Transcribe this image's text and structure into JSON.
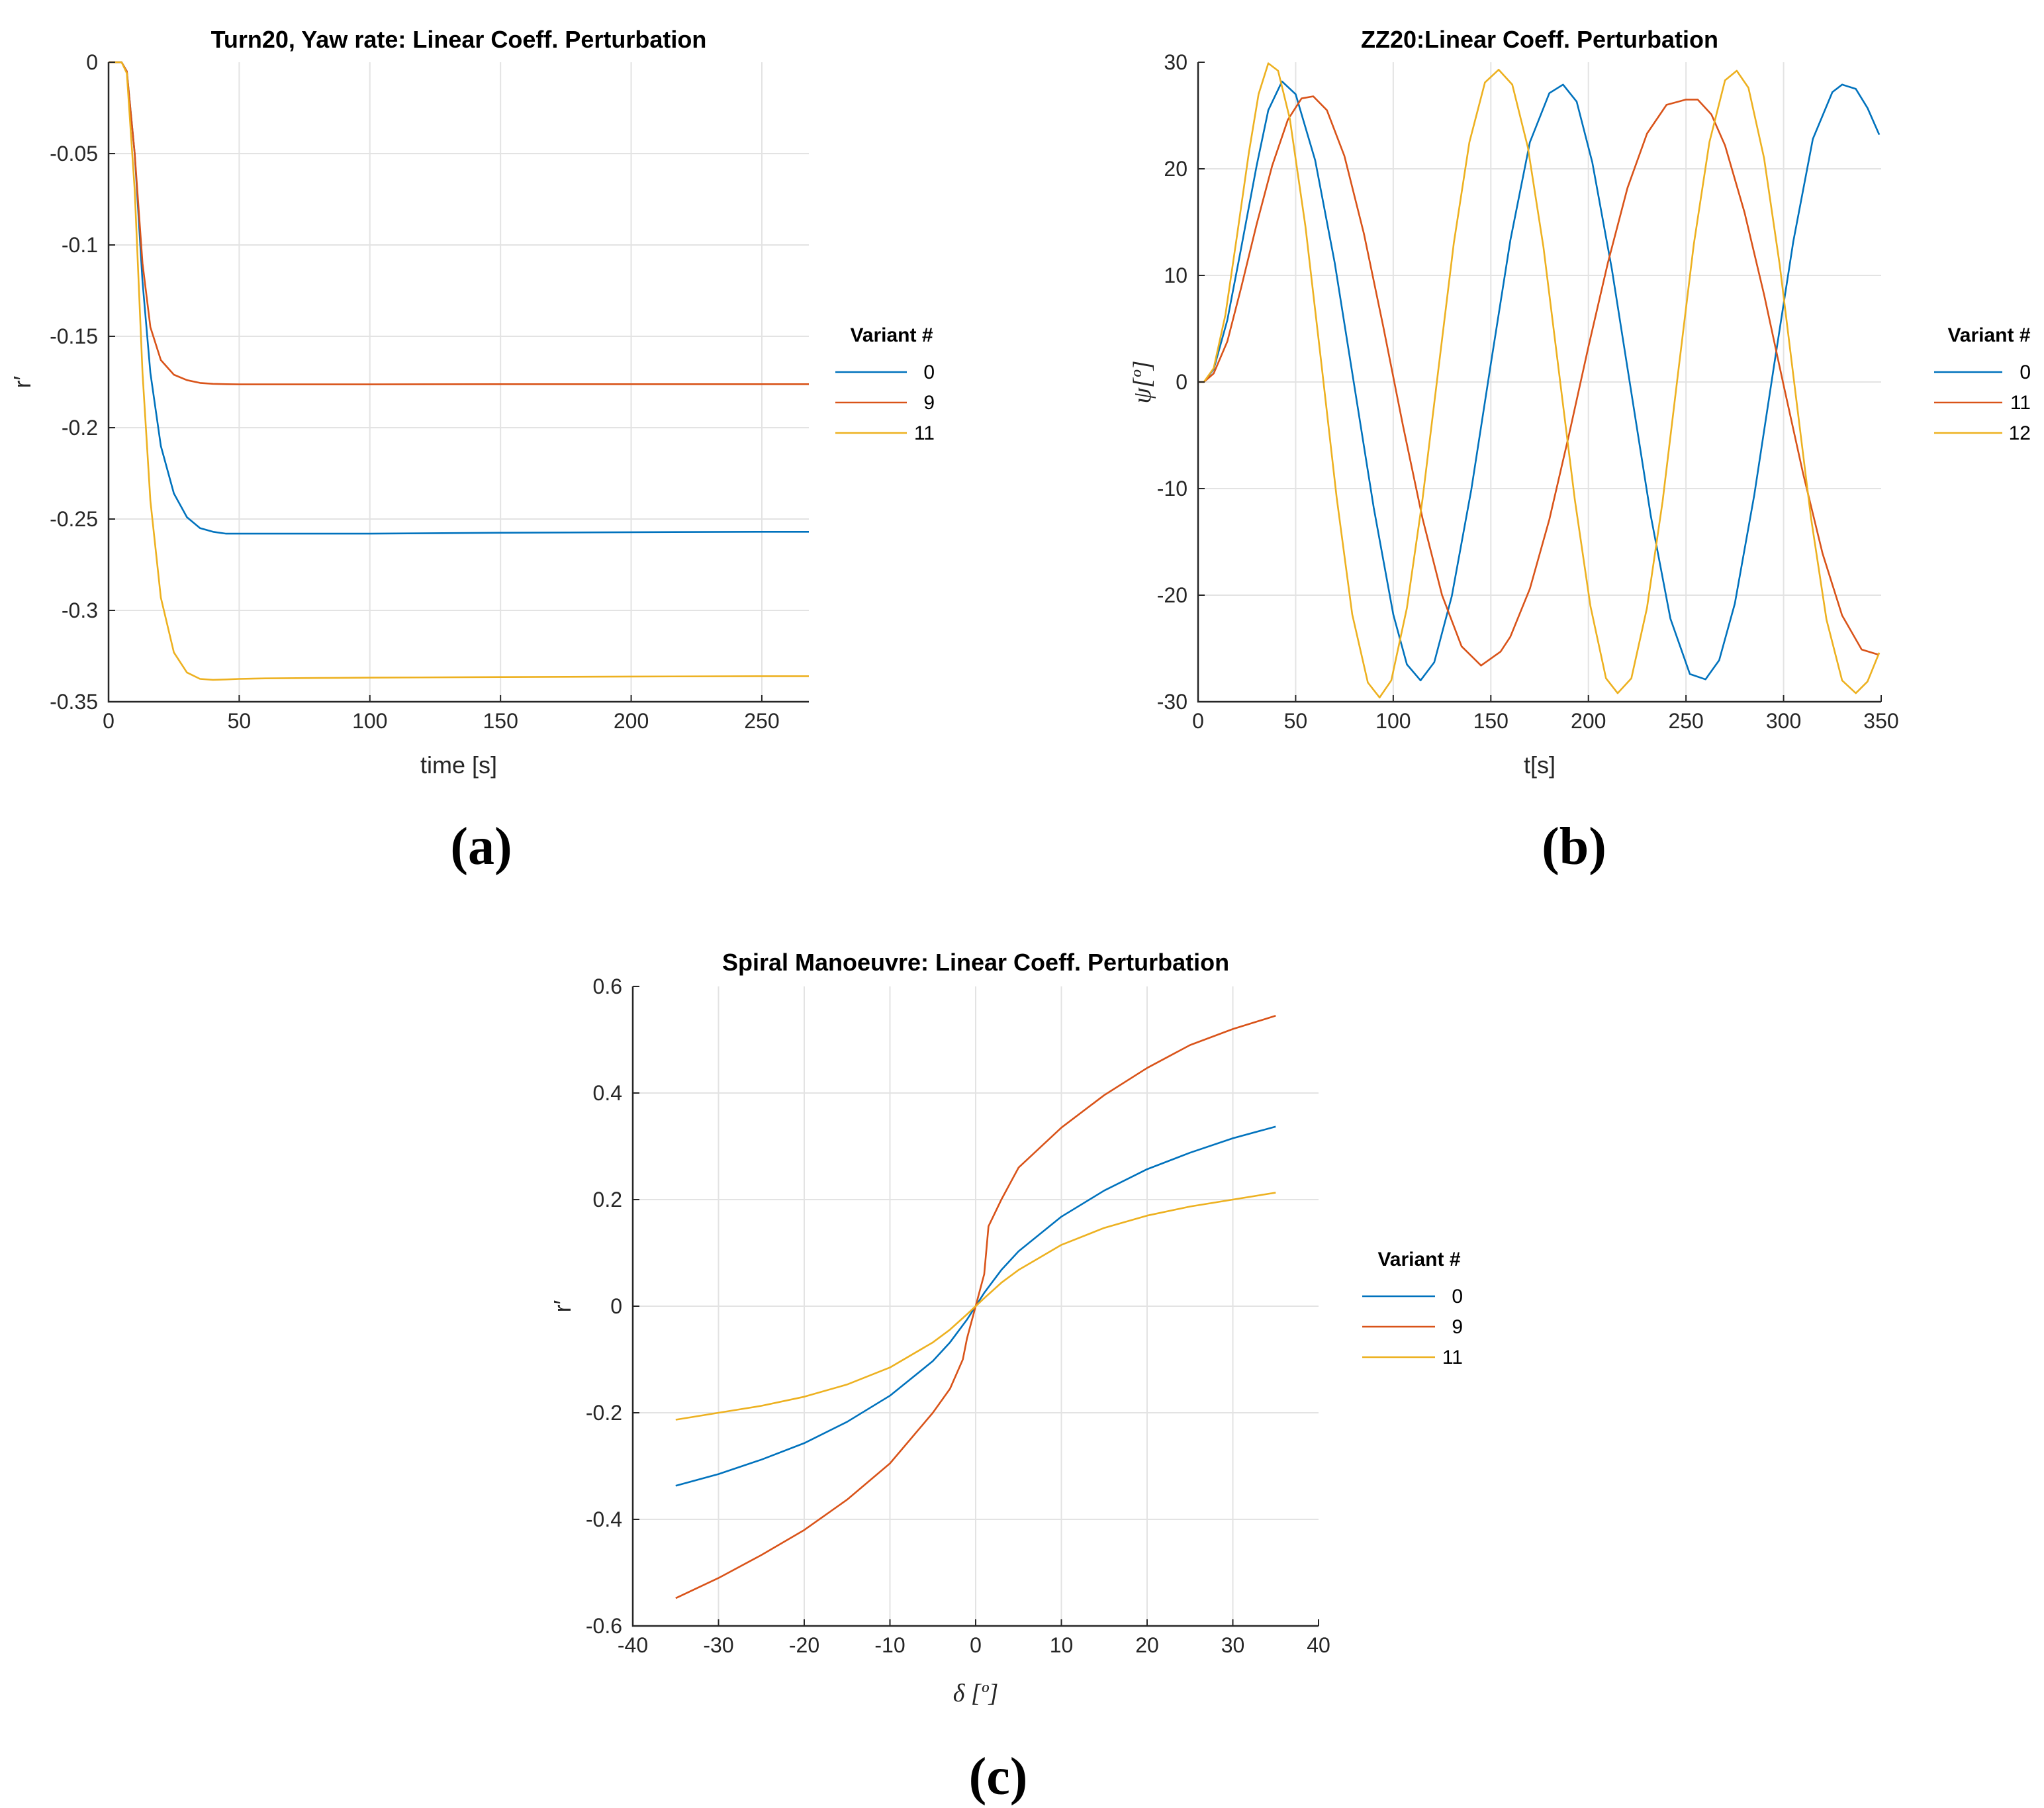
{
  "chart_data": [
    {
      "type": "line",
      "panel": "a",
      "caption": "(a)",
      "title": "Turn20, Yaw rate: Linear Coeff. Perturbation",
      "xlabel": "time [s]",
      "ylabel": "r′",
      "xlim": [
        0,
        268
      ],
      "ylim": [
        -0.35,
        0
      ],
      "xticks": [
        0,
        50,
        100,
        150,
        200,
        250
      ],
      "xtick_labels": [
        "0",
        "50",
        "100",
        "150",
        "200",
        "250"
      ],
      "yticks": [
        0,
        -0.05,
        -0.1,
        -0.15,
        -0.2,
        -0.25,
        -0.3,
        -0.35
      ],
      "ytick_labels": [
        "0",
        "-0.05",
        "-0.1",
        "-0.15",
        "-0.2",
        "-0.25",
        "-0.3",
        "-0.35"
      ],
      "grid": true,
      "legend_title": "Variant #",
      "legend_position": "outside-right",
      "series": [
        {
          "name": "0",
          "color": "#0072BD",
          "x": [
            0,
            5,
            7,
            10,
            13,
            16,
            20,
            25,
            30,
            35,
            40,
            45,
            50,
            60,
            80,
            100,
            150,
            200,
            250,
            268
          ],
          "y": [
            0,
            0,
            -0.005,
            -0.05,
            -0.12,
            -0.17,
            -0.21,
            -0.236,
            -0.249,
            -0.255,
            -0.257,
            -0.258,
            -0.258,
            -0.258,
            -0.258,
            -0.258,
            -0.2575,
            -0.2572,
            -0.257,
            -0.257
          ]
        },
        {
          "name": "9",
          "color": "#D95319",
          "x": [
            0,
            5,
            7,
            10,
            13,
            16,
            20,
            25,
            30,
            35,
            40,
            45,
            50,
            60,
            80,
            100,
            150,
            200,
            250,
            268
          ],
          "y": [
            0,
            0,
            -0.005,
            -0.05,
            -0.11,
            -0.145,
            -0.163,
            -0.171,
            -0.174,
            -0.1755,
            -0.176,
            -0.1762,
            -0.1763,
            -0.1763,
            -0.1763,
            -0.1763,
            -0.1762,
            -0.1762,
            -0.1762,
            -0.1762
          ]
        },
        {
          "name": "11",
          "color": "#EDB120",
          "x": [
            0,
            5,
            7,
            10,
            13,
            16,
            20,
            25,
            30,
            35,
            40,
            45,
            50,
            60,
            80,
            100,
            150,
            200,
            250,
            268
          ],
          "y": [
            0,
            0,
            -0.006,
            -0.07,
            -0.17,
            -0.24,
            -0.293,
            -0.323,
            -0.334,
            -0.3375,
            -0.338,
            -0.3378,
            -0.3375,
            -0.3372,
            -0.337,
            -0.3368,
            -0.3365,
            -0.3362,
            -0.336,
            -0.336
          ]
        }
      ]
    },
    {
      "type": "line",
      "panel": "b",
      "caption": "(b)",
      "title": "ZZ20:Linear Coeff. Perturbation",
      "xlabel": "t[s]",
      "ylabel": "ψ[º]",
      "xlim": [
        0,
        350
      ],
      "ylim": [
        -30,
        30
      ],
      "xticks": [
        0,
        50,
        100,
        150,
        200,
        250,
        300,
        350
      ],
      "xtick_labels": [
        "0",
        "50",
        "100",
        "150",
        "200",
        "250",
        "300",
        "350"
      ],
      "yticks": [
        30,
        20,
        10,
        0,
        -10,
        -20,
        -30
      ],
      "ytick_labels": [
        "30",
        "20",
        "10",
        "0",
        "-10",
        "-20",
        "-30"
      ],
      "grid": true,
      "legend_title": "Variant #",
      "legend_position": "outside-right",
      "series": [
        {
          "name": "0",
          "color": "#0072BD",
          "x": [
            0,
            3,
            8,
            15,
            22,
            30,
            36,
            43,
            50,
            60,
            70,
            80,
            90,
            100,
            107,
            114,
            121,
            130,
            140,
            150,
            160,
            170,
            180,
            187,
            194,
            202,
            212,
            222,
            232,
            242,
            252,
            260,
            267,
            275,
            285,
            295,
            305,
            315,
            325,
            330,
            337,
            343,
            349
          ],
          "y": [
            0,
            0,
            1.2,
            5.8,
            12.5,
            20.3,
            25.5,
            28.2,
            27.0,
            20.8,
            11.2,
            -0.3,
            -11.8,
            -21.8,
            -26.5,
            -28.0,
            -26.3,
            -20.1,
            -10.1,
            1.7,
            13.3,
            22.5,
            27.1,
            27.9,
            26.3,
            20.6,
            10.6,
            -1.0,
            -12.6,
            -22.2,
            -27.4,
            -27.9,
            -26.1,
            -20.8,
            -10.6,
            1.4,
            13.2,
            22.8,
            27.2,
            27.9,
            27.5,
            25.7,
            23.2
          ]
        },
        {
          "name": "11",
          "color": "#D95319",
          "x": [
            0,
            3,
            8,
            15,
            22,
            30,
            38,
            46,
            53,
            59,
            66,
            75,
            85,
            95,
            105,
            115,
            125,
            135,
            145,
            155,
            160,
            170,
            180,
            190,
            200,
            210,
            220,
            230,
            240,
            250,
            256,
            263,
            270,
            280,
            290,
            300,
            310,
            320,
            330,
            340,
            349
          ],
          "y": [
            0,
            0,
            0.8,
            3.8,
            8.8,
            14.8,
            20.3,
            24.6,
            26.6,
            26.8,
            25.5,
            21.2,
            13.9,
            5.1,
            -4.1,
            -12.8,
            -20.0,
            -24.8,
            -26.6,
            -25.3,
            -23.9,
            -19.4,
            -12.9,
            -5.0,
            3.3,
            11.2,
            18.2,
            23.3,
            26.0,
            26.5,
            26.5,
            25.1,
            22.2,
            15.9,
            8.2,
            -0.3,
            -8.6,
            -16.1,
            -21.9,
            -25.1,
            -25.6
          ]
        },
        {
          "name": "12",
          "color": "#EDB120",
          "x": [
            0,
            3,
            8,
            14,
            20,
            26,
            31,
            36,
            41,
            47,
            55,
            63,
            71,
            79,
            87,
            93,
            99,
            107,
            115,
            123,
            131,
            139,
            147,
            154,
            161,
            169,
            177,
            185,
            193,
            201,
            209,
            215,
            222,
            230,
            238,
            246,
            254,
            262,
            270,
            276,
            282,
            290,
            298,
            306,
            314,
            322,
            330,
            337,
            343,
            349
          ],
          "y": [
            0,
            0,
            1.3,
            6.3,
            13.8,
            21.5,
            27.0,
            29.9,
            29.2,
            24.7,
            14.6,
            2.0,
            -10.8,
            -21.8,
            -28.2,
            -29.6,
            -28.0,
            -21.2,
            -11.0,
            1.0,
            13.0,
            22.5,
            28.1,
            29.3,
            27.9,
            22.0,
            12.6,
            0.8,
            -11.0,
            -21.0,
            -27.8,
            -29.2,
            -27.8,
            -21.2,
            -11.2,
            0.9,
            12.9,
            22.5,
            28.3,
            29.2,
            27.6,
            21.0,
            11.0,
            -0.9,
            -12.7,
            -22.3,
            -28.0,
            -29.2,
            -28.1,
            -25.4
          ]
        }
      ]
    },
    {
      "type": "line",
      "panel": "c",
      "caption": "(c)",
      "title": "Spiral Manoeuvre: Linear Coeff. Perturbation",
      "xlabel": "δ [º]",
      "ylabel": "r′",
      "xlim": [
        -40,
        40
      ],
      "ylim": [
        -0.6,
        0.6
      ],
      "xticks": [
        -40,
        -30,
        -20,
        -10,
        0,
        10,
        20,
        30,
        40
      ],
      "xtick_labels": [
        "-40",
        "-30",
        "-20",
        "-10",
        "0",
        "10",
        "20",
        "30",
        "40"
      ],
      "yticks": [
        0.6,
        0.4,
        0.2,
        0,
        -0.2,
        -0.4,
        -0.6
      ],
      "ytick_labels": [
        "0.6",
        "0.4",
        "0.2",
        "0",
        "-0.2",
        "-0.4",
        "-0.6"
      ],
      "grid": true,
      "legend_title": "Variant #",
      "legend_position": "outside-right",
      "series": [
        {
          "name": "0",
          "color": "#0072BD",
          "x": [
            -35,
            -30,
            -25,
            -20,
            -15,
            -10,
            -5,
            -3,
            -1,
            0,
            1,
            3,
            5,
            10,
            15,
            20,
            25,
            30,
            35
          ],
          "y": [
            -0.337,
            -0.315,
            -0.288,
            -0.257,
            -0.217,
            -0.168,
            -0.103,
            -0.068,
            -0.025,
            0,
            0.025,
            0.068,
            0.103,
            0.168,
            0.217,
            0.257,
            0.288,
            0.315,
            0.337
          ]
        },
        {
          "name": "9",
          "color": "#D95319",
          "x": [
            -35,
            -30,
            -25,
            -20,
            -15,
            -10,
            -5,
            -3,
            -1.5,
            -1,
            0,
            1,
            1.5,
            3,
            5,
            10,
            15,
            20,
            25,
            30,
            35
          ],
          "y": [
            -0.548,
            -0.51,
            -0.467,
            -0.42,
            -0.363,
            -0.295,
            -0.2,
            -0.155,
            -0.1,
            -0.06,
            0,
            0.06,
            0.15,
            0.2,
            0.26,
            0.335,
            0.396,
            0.447,
            0.49,
            0.52,
            0.545
          ]
        },
        {
          "name": "11",
          "color": "#EDB120",
          "x": [
            -35,
            -30,
            -25,
            -20,
            -15,
            -10,
            -5,
            -3,
            -1,
            0,
            1,
            3,
            5,
            10,
            15,
            20,
            25,
            30,
            35
          ],
          "y": [
            -0.213,
            -0.2,
            -0.187,
            -0.17,
            -0.147,
            -0.115,
            -0.068,
            -0.044,
            -0.015,
            0,
            0.015,
            0.044,
            0.068,
            0.115,
            0.147,
            0.17,
            0.187,
            0.2,
            0.213
          ]
        }
      ]
    }
  ]
}
